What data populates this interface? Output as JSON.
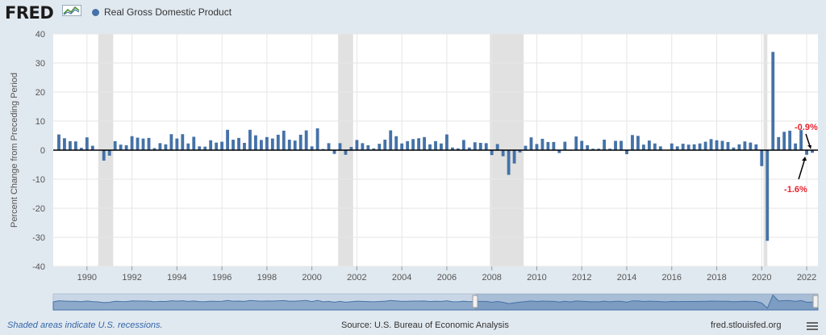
{
  "header": {
    "logo_text": "FRED",
    "series_name": "Real Gross Domestic Product",
    "series_color": "#4572a7"
  },
  "chart_data": {
    "type": "bar",
    "title": "",
    "ylabel": "Percent Change from Preceding Period",
    "xlabel": "",
    "ylim": [
      -40,
      40
    ],
    "yticks": [
      40,
      30,
      20,
      10,
      0,
      -10,
      -20,
      -30,
      -40
    ],
    "xlim": [
      "1988-07-01",
      "2022-07-01"
    ],
    "xticks": [
      "1990",
      "1992",
      "1994",
      "1996",
      "1998",
      "2000",
      "2002",
      "2004",
      "2006",
      "2008",
      "2010",
      "2012",
      "2014",
      "2016",
      "2018",
      "2020",
      "2022"
    ],
    "grid": true,
    "bar_color": "#4572a7",
    "recession_color": "#e1e1e1",
    "recessions": [
      {
        "start": "1990-07-01",
        "end": "1991-03-01"
      },
      {
        "start": "2001-03-01",
        "end": "2001-11-01"
      },
      {
        "start": "2007-12-01",
        "end": "2009-06-01"
      },
      {
        "start": "2020-02-01",
        "end": "2020-04-01"
      }
    ],
    "annotations": [
      {
        "text": "-0.9%",
        "date": "2022-04-01",
        "value": -0.9,
        "color": "#e8222d"
      },
      {
        "text": "-1.6%",
        "date": "2022-01-01",
        "value": -1.6,
        "color": "#e8222d"
      }
    ],
    "series": [
      {
        "start": "1988-10-01",
        "values": [
          5.4,
          4.1,
          3.1,
          3.0,
          0.8,
          4.4,
          1.5,
          0.1,
          -3.6,
          -1.9,
          3.1,
          1.9,
          1.7,
          4.8,
          4.3,
          4.0,
          4.2,
          0.7,
          2.4,
          2.0,
          5.5,
          4.0,
          5.5,
          2.3,
          4.6,
          1.3,
          1.2,
          3.4,
          2.6,
          2.9,
          7.0,
          3.6,
          4.2,
          2.5,
          7.0,
          5.1,
          3.5,
          4.5,
          4.0,
          5.3,
          6.7,
          3.6,
          3.3,
          5.3,
          6.8,
          1.3,
          7.5,
          0.4,
          2.4,
          -1.3,
          2.4,
          -1.6,
          1.1,
          3.5,
          2.4,
          1.7,
          0.6,
          2.2,
          3.6,
          6.8,
          4.8,
          2.3,
          3.1,
          3.8,
          4.1,
          4.5,
          2.0,
          3.1,
          2.3,
          5.4,
          0.9,
          0.6,
          3.5,
          0.9,
          2.7,
          2.5,
          2.4,
          -1.7,
          2.1,
          -2.1,
          -8.5,
          -4.6,
          -0.8,
          1.5,
          4.4,
          2.1,
          3.9,
          2.8,
          2.8,
          -1.0,
          2.9,
          -0.1,
          4.7,
          3.2,
          1.7,
          0.5,
          0.5,
          3.6,
          0.5,
          3.2,
          3.2,
          -1.4,
          5.2,
          4.9,
          1.9,
          3.3,
          2.3,
          1.3,
          0.1,
          2.3,
          1.3,
          2.2,
          1.9,
          2.0,
          2.3,
          2.9,
          3.8,
          3.4,
          3.2,
          2.8,
          0.9,
          2.0,
          3.0,
          2.6,
          2.0,
          -5.5,
          -31.2,
          33.8,
          4.5,
          6.3,
          6.7,
          2.3,
          6.9,
          -1.6,
          -0.9
        ]
      }
    ]
  },
  "footer": {
    "note": "Shaded areas indicate U.S. recessions.",
    "source": "Source: U.S. Bureau of Economic Analysis",
    "site": "fred.stlouisfed.org"
  }
}
